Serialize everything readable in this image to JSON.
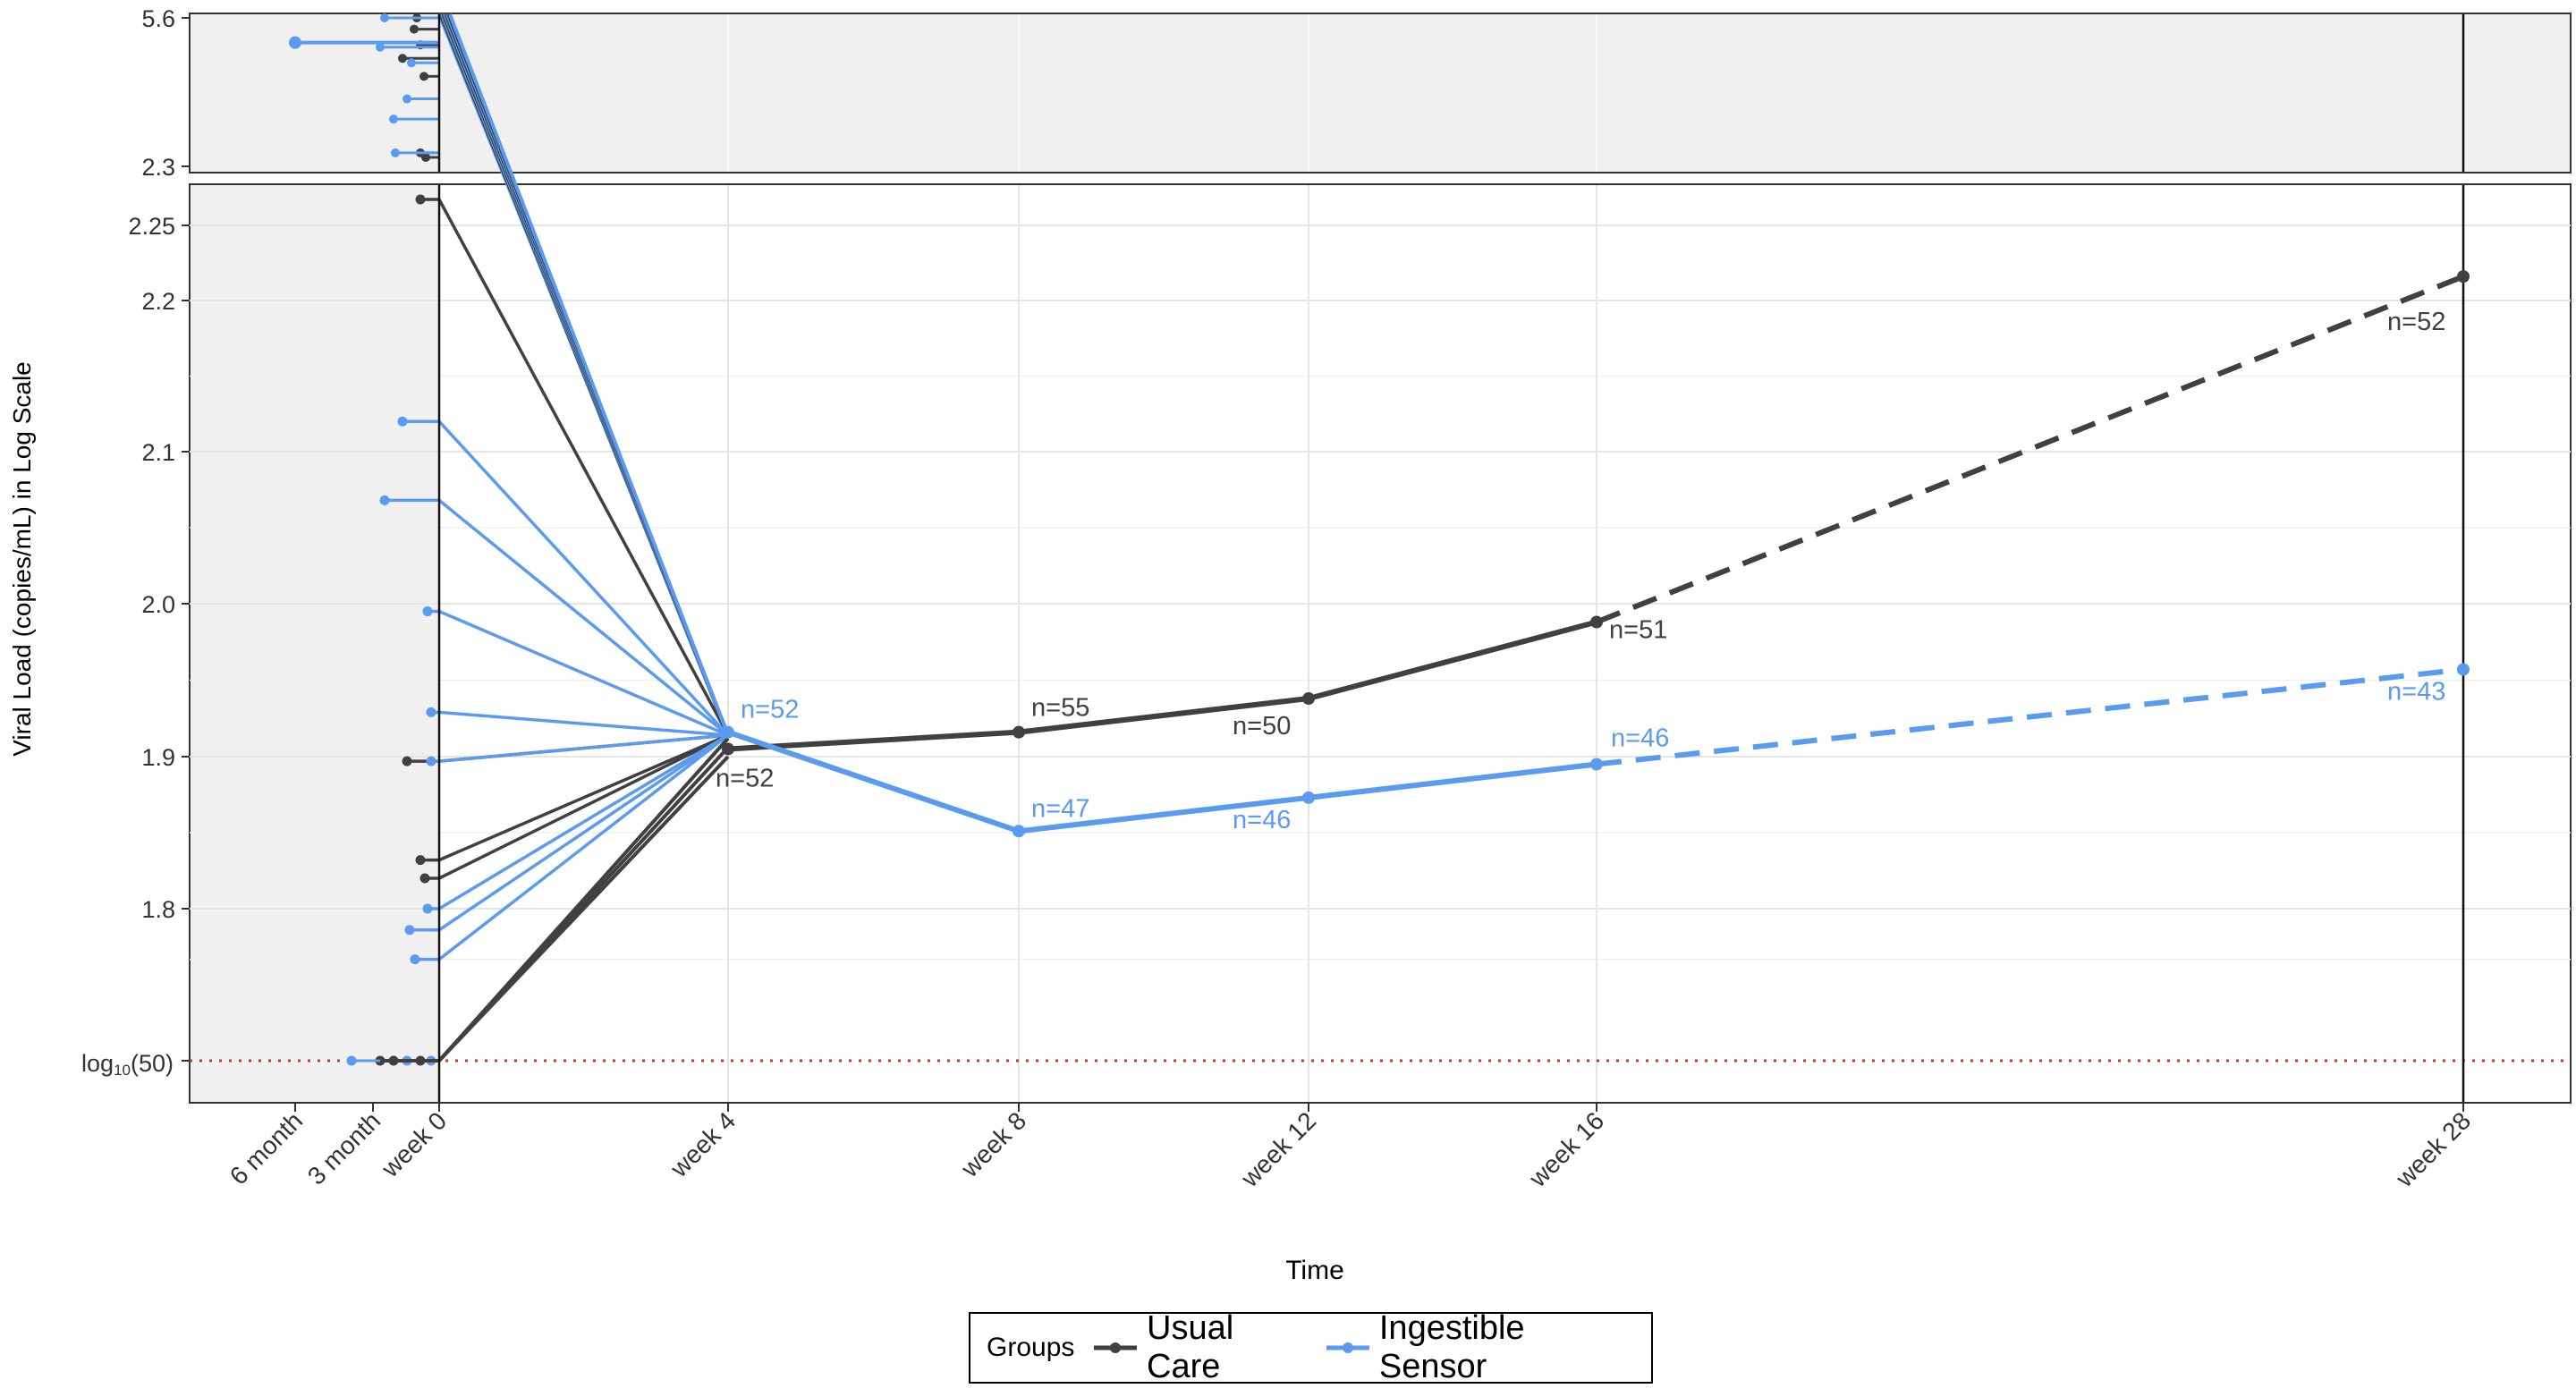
{
  "chart_data": {
    "type": "line",
    "ylabel": "Viral Load (copies/mL) in Log Scale",
    "xlabel": "Time",
    "x_tick_labels": [
      "6 month",
      "3 month",
      "week 0",
      "week 4",
      "week 8",
      "week 12",
      "week 16",
      "week 28"
    ],
    "y_ticks_main": [
      "2.25",
      "2.2",
      "2.1",
      "2.0",
      "1.9",
      "1.8"
    ],
    "y_ticks_top": [
      "5.6",
      "2.3"
    ],
    "reference_line": {
      "label_main": "log",
      "label_sub": "10",
      "label_tail": "(50)",
      "color": "#c0392b"
    },
    "legend": {
      "title": "Groups",
      "placement": "bottom-center"
    },
    "colors": {
      "usual_care": "#404040",
      "ingestible_sensor": "#5b9bef",
      "panel_bg": "#f0f0f0",
      "grid": "#e5e5e5"
    },
    "series": [
      {
        "name": "Usual Care",
        "x": [
          "week 4",
          "week 8",
          "week 12",
          "week 16",
          "week 28"
        ],
        "y": [
          1.905,
          1.916,
          1.938,
          1.988,
          2.216
        ],
        "n_labels": [
          "n=52",
          "n=55",
          "n=50",
          "n=51",
          "n=52"
        ],
        "dashed_from": "week 16"
      },
      {
        "name": "Ingestible Sensor",
        "x": [
          "week 4",
          "week 8",
          "week 12",
          "week 16",
          "week 28"
        ],
        "y": [
          1.916,
          1.851,
          1.873,
          1.895,
          1.957
        ],
        "n_labels": [
          "n=52",
          "n=47",
          "n=46",
          "n=46",
          "n=43"
        ],
        "dashed_from": "week 16"
      }
    ],
    "baseline_individual": {
      "usual_care_main": [
        2.268,
        1.897,
        1.832,
        1.82
      ],
      "ingestible_sensor_main": [
        2.12,
        2.068,
        1.995,
        1.929,
        1.897,
        1.8,
        1.779,
        1.75
      ]
    },
    "panels": [
      "top (high values, 2.3 to 5.6)",
      "main (log10(50) to 2.25)"
    ],
    "grid": true
  }
}
